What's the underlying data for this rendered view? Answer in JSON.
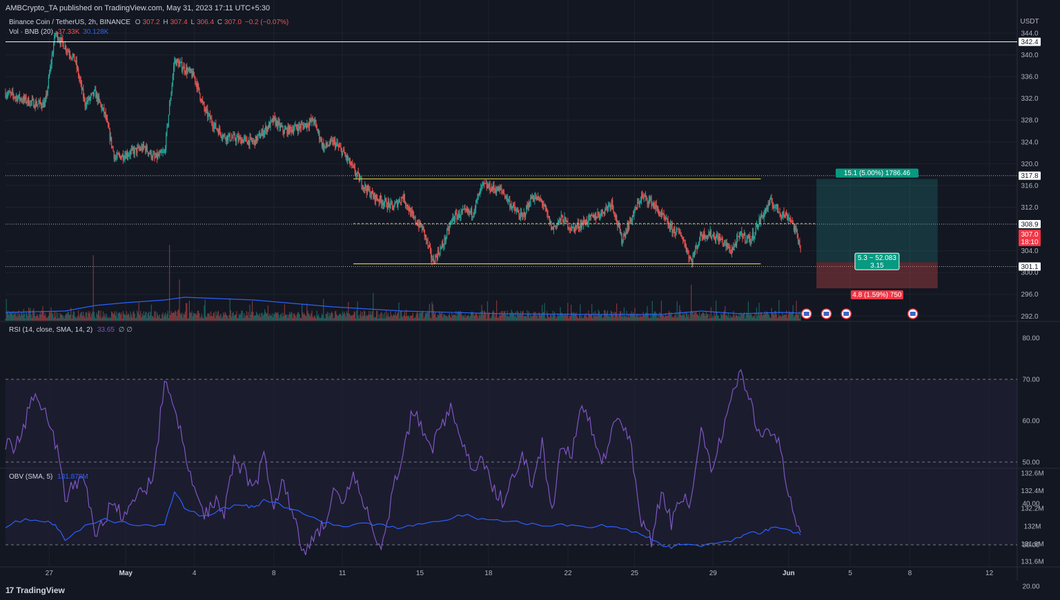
{
  "header": {
    "published": "AMBCrypto_TA published on TradingView.com, May 31, 2023 17:11 UTC+5:30"
  },
  "legend": {
    "symbol": "Binance Coin / TetherUS, 2h, BINANCE",
    "o_label": "O",
    "o": "307.2",
    "h_label": "H",
    "h": "307.4",
    "l_label": "L",
    "l": "306.4",
    "c_label": "C",
    "c": "307.0",
    "change": "−0.2 (−0.07%)",
    "vol_title": "Vol · BNB (20)",
    "vol_value": "37.33K",
    "vol_ma": "30.128K",
    "rsi_title": "RSI (14, close, SMA, 14, 2)",
    "rsi_value": "33.65",
    "rsi_extra": "∅ ∅",
    "obv_title": "OBV (SMA, 5)",
    "obv_value": "131.878M"
  },
  "brand": {
    "logo": "17",
    "name": "TradingView"
  },
  "colors": {
    "up": "#26a69a",
    "down": "#ef5350",
    "channel": "#d4c53a",
    "rsi": "#7e57c2",
    "obv": "#2962ff",
    "bg": "#131722",
    "grid": "#1e222d"
  },
  "chart_data": [
    {
      "type": "candlestick",
      "panel": "price",
      "title": "Binance Coin / TetherUS, 2h, BINANCE",
      "y_unit": "USDT",
      "ylim": [
        291.0,
        345.0
      ],
      "y_ticks": [
        "344.0",
        "340.0",
        "336.0",
        "332.0",
        "328.0",
        "324.0",
        "320.0",
        "316.0",
        "312.0",
        "304.0",
        "300.0",
        "296.0",
        "292.0"
      ],
      "x_ticks": [
        "27",
        "May",
        "4",
        "8",
        "11",
        "15",
        "18",
        "22",
        "25",
        "29",
        "Jun",
        "5",
        "8",
        "12"
      ],
      "x_ticks_bold": [
        "May",
        "Jun"
      ],
      "series_path": [
        [
          0,
          333
        ],
        [
          3,
          331
        ],
        [
          4,
          331
        ],
        [
          5,
          344
        ],
        [
          7,
          339
        ],
        [
          8,
          331
        ],
        [
          9,
          333
        ],
        [
          10,
          329
        ],
        [
          11,
          321
        ],
        [
          14,
          323
        ],
        [
          15,
          321
        ],
        [
          16,
          322
        ],
        [
          17,
          339
        ],
        [
          19,
          336
        ],
        [
          20,
          330
        ],
        [
          21,
          327
        ],
        [
          22,
          325
        ],
        [
          25,
          324
        ],
        [
          27,
          328
        ],
        [
          28,
          326
        ],
        [
          30,
          327
        ],
        [
          31,
          328
        ],
        [
          32,
          323
        ],
        [
          33,
          324
        ],
        [
          34,
          322
        ],
        [
          35,
          319
        ],
        [
          36,
          316
        ],
        [
          37,
          314
        ],
        [
          38,
          313
        ],
        [
          39,
          312
        ],
        [
          40,
          314
        ],
        [
          41,
          310
        ],
        [
          42,
          308
        ],
        [
          43,
          302
        ],
        [
          44,
          305
        ],
        [
          45,
          310
        ],
        [
          46,
          311
        ],
        [
          47,
          311
        ],
        [
          48,
          316
        ],
        [
          50,
          315
        ],
        [
          51,
          312
        ],
        [
          52,
          310
        ],
        [
          53,
          314
        ],
        [
          54,
          313
        ],
        [
          55,
          308
        ],
        [
          56,
          310
        ],
        [
          57,
          308
        ],
        [
          58,
          309
        ],
        [
          60,
          311
        ],
        [
          61,
          313
        ],
        [
          62,
          306
        ],
        [
          63,
          310
        ],
        [
          64,
          314
        ],
        [
          65,
          313
        ],
        [
          67,
          308
        ],
        [
          68,
          307
        ],
        [
          69,
          302
        ],
        [
          70,
          307
        ],
        [
          71,
          307
        ],
        [
          72,
          306
        ],
        [
          73,
          304
        ],
        [
          74,
          307
        ],
        [
          75,
          306
        ],
        [
          76,
          310
        ],
        [
          77,
          313
        ],
        [
          78,
          311
        ],
        [
          79,
          310
        ],
        [
          80,
          305
        ]
      ],
      "channel": {
        "top": 317.2,
        "bottom": 301.6,
        "mid": 309.0,
        "from_day": 35.0,
        "to_day": 76.0
      },
      "hlines": [
        {
          "value": 342.4,
          "label": "342.4",
          "style": "solid"
        },
        {
          "value": 317.8,
          "label": "317.8",
          "style": "dotted"
        },
        {
          "value": 308.9,
          "label": "308.9",
          "style": "dotted"
        },
        {
          "value": 301.1,
          "label": "301.1",
          "style": "dotted"
        }
      ],
      "last_price": {
        "value": 307.0,
        "label": "307.0",
        "countdown": "18:10"
      },
      "position": {
        "entry": 301.9,
        "target": 317.2,
        "stop": 297.1,
        "from_day": 81.6,
        "to_day": 93.8,
        "target_label": "15.1 (5.00%) 1786.46",
        "ratio_label_1": "5.3 ~ 52.083",
        "ratio_label_2": "3.15",
        "stop_label": "4.8 (1.59%) 750"
      },
      "event_days": [
        80.6,
        82.6,
        84.6,
        91.3
      ],
      "event_icon": "us-flag-icon"
    },
    {
      "type": "bar",
      "panel": "volume",
      "title": "Vol · BNB (20)",
      "series": [
        {
          "name": "Vol · BNB",
          "spikes": [
            [
              8.8,
              95
            ],
            [
              16.5,
              110
            ],
            [
              17.5,
              60
            ],
            [
              37.0,
              40
            ],
            [
              48.5,
              28
            ],
            [
              61.5,
              25
            ],
            [
              69.0,
              52
            ],
            [
              77.8,
              30
            ],
            [
              80.2,
              50
            ]
          ]
        },
        {
          "name": "MA",
          "path": [
            [
              0,
              12
            ],
            [
              6,
              14
            ],
            [
              9,
              22
            ],
            [
              12,
              26
            ],
            [
              16,
              30
            ],
            [
              18,
              34
            ],
            [
              25,
              30
            ],
            [
              33,
              20
            ],
            [
              40,
              14
            ],
            [
              50,
              10
            ],
            [
              60,
              9
            ],
            [
              66,
              9
            ],
            [
              70,
              14
            ],
            [
              74,
              10
            ],
            [
              78,
              12
            ],
            [
              80,
              11
            ]
          ]
        }
      ]
    },
    {
      "type": "line",
      "panel": "rsi",
      "title": "RSI (14, close, SMA, 14, 2)",
      "ylim": [
        19.0,
        83.0
      ],
      "y_ticks": [
        "80.00",
        "70.00",
        "60.00",
        "50.00",
        "40.00",
        "30.00",
        "20.00"
      ],
      "levels": [
        70,
        50,
        30
      ],
      "series_path": [
        [
          0,
          55
        ],
        [
          1,
          53
        ],
        [
          2,
          60
        ],
        [
          3,
          68
        ],
        [
          4,
          62
        ],
        [
          5,
          55
        ],
        [
          6,
          42
        ],
        [
          7,
          44
        ],
        [
          8,
          46
        ],
        [
          9,
          32
        ],
        [
          10,
          37
        ],
        [
          11,
          40
        ],
        [
          12,
          36
        ],
        [
          13,
          41
        ],
        [
          14,
          43
        ],
        [
          15,
          48
        ],
        [
          16,
          70
        ],
        [
          17,
          64
        ],
        [
          18,
          52
        ],
        [
          19,
          43
        ],
        [
          20,
          37
        ],
        [
          21,
          41
        ],
        [
          22,
          38
        ],
        [
          23,
          51
        ],
        [
          24,
          48
        ],
        [
          25,
          43
        ],
        [
          26,
          52
        ],
        [
          27,
          40
        ],
        [
          28,
          46
        ],
        [
          29,
          36
        ],
        [
          30,
          28
        ],
        [
          31,
          32
        ],
        [
          32,
          35
        ],
        [
          33,
          42
        ],
        [
          34,
          39
        ],
        [
          35,
          47
        ],
        [
          36,
          40
        ],
        [
          37,
          33
        ],
        [
          38,
          30
        ],
        [
          39,
          43
        ],
        [
          40,
          52
        ],
        [
          41,
          63
        ],
        [
          42,
          58
        ],
        [
          43,
          54
        ],
        [
          44,
          60
        ],
        [
          45,
          63
        ],
        [
          46,
          55
        ],
        [
          47,
          47
        ],
        [
          48,
          51
        ],
        [
          49,
          43
        ],
        [
          50,
          41
        ],
        [
          51,
          46
        ],
        [
          52,
          51
        ],
        [
          53,
          45
        ],
        [
          54,
          54
        ],
        [
          55,
          37
        ],
        [
          56,
          55
        ],
        [
          57,
          52
        ],
        [
          58,
          64
        ],
        [
          59,
          58
        ],
        [
          60,
          49
        ],
        [
          61,
          58
        ],
        [
          62,
          61
        ],
        [
          63,
          53
        ],
        [
          64,
          36
        ],
        [
          65,
          31
        ],
        [
          66,
          43
        ],
        [
          67,
          35
        ],
        [
          68,
          42
        ],
        [
          69,
          40
        ],
        [
          70,
          57
        ],
        [
          71,
          49
        ],
        [
          72,
          55
        ],
        [
          73,
          66
        ],
        [
          74,
          72
        ],
        [
          75,
          64
        ],
        [
          76,
          55
        ],
        [
          77,
          58
        ],
        [
          78,
          53
        ],
        [
          79,
          40
        ],
        [
          80,
          33
        ]
      ]
    },
    {
      "type": "line",
      "panel": "obv",
      "title": "OBV (SMA, 5)",
      "ylim": [
        131.58,
        132.62
      ],
      "y_ticks": [
        "132.6M",
        "132.4M",
        "132.2M",
        "132M",
        "131.8M",
        "131.6M"
      ],
      "series_path": [
        [
          0,
          132.0
        ],
        [
          2,
          132.08
        ],
        [
          4,
          132.05
        ],
        [
          5,
          132.02
        ],
        [
          6,
          131.85
        ],
        [
          8,
          132.0
        ],
        [
          10,
          132.07
        ],
        [
          12,
          132.04
        ],
        [
          14,
          132.01
        ],
        [
          16,
          132.0
        ],
        [
          17,
          132.4
        ],
        [
          18,
          132.2
        ],
        [
          20,
          132.1
        ],
        [
          22,
          132.2
        ],
        [
          24,
          132.25
        ],
        [
          25,
          132.2
        ],
        [
          26,
          132.3
        ],
        [
          28,
          132.22
        ],
        [
          30,
          132.15
        ],
        [
          32,
          132.05
        ],
        [
          34,
          132.0
        ],
        [
          36,
          132.03
        ],
        [
          38,
          132.0
        ],
        [
          40,
          131.98
        ],
        [
          42,
          132.02
        ],
        [
          44,
          132.05
        ],
        [
          46,
          132.13
        ],
        [
          48,
          132.08
        ],
        [
          50,
          132.06
        ],
        [
          52,
          132.04
        ],
        [
          54,
          132.02
        ],
        [
          56,
          132.01
        ],
        [
          58,
          131.98
        ],
        [
          60,
          132.0
        ],
        [
          62,
          131.97
        ],
        [
          64,
          131.9
        ],
        [
          65,
          131.85
        ],
        [
          66,
          131.79
        ],
        [
          67,
          131.76
        ],
        [
          68,
          131.8
        ],
        [
          70,
          131.78
        ],
        [
          72,
          131.8
        ],
        [
          74,
          131.88
        ],
        [
          75,
          131.95
        ],
        [
          76,
          131.92
        ],
        [
          77,
          131.98
        ],
        [
          79,
          131.95
        ],
        [
          80,
          131.9
        ]
      ]
    }
  ]
}
